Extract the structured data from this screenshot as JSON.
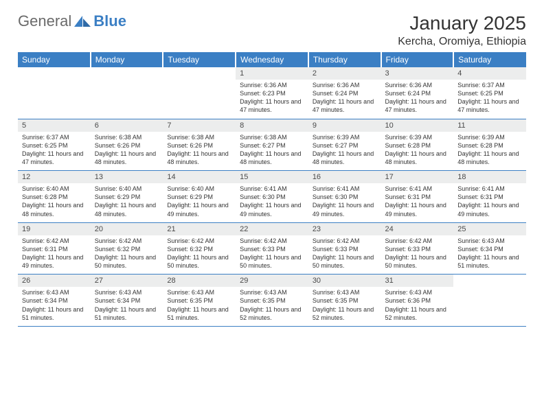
{
  "brand": {
    "part1": "General",
    "part2": "Blue",
    "logo_color": "#3b7fc4"
  },
  "title": "January 2025",
  "location": "Kercha, Oromiya, Ethiopia",
  "header_bg": "#3b7fc4",
  "header_fg": "#ffffff",
  "daynum_bg": "#eceded",
  "border_color": "#3b7fc4",
  "weekdays": [
    "Sunday",
    "Monday",
    "Tuesday",
    "Wednesday",
    "Thursday",
    "Friday",
    "Saturday"
  ],
  "weeks": [
    [
      null,
      null,
      null,
      {
        "d": "1",
        "sr": "6:36 AM",
        "ss": "6:23 PM",
        "dl": "11 hours and 47 minutes."
      },
      {
        "d": "2",
        "sr": "6:36 AM",
        "ss": "6:24 PM",
        "dl": "11 hours and 47 minutes."
      },
      {
        "d": "3",
        "sr": "6:36 AM",
        "ss": "6:24 PM",
        "dl": "11 hours and 47 minutes."
      },
      {
        "d": "4",
        "sr": "6:37 AM",
        "ss": "6:25 PM",
        "dl": "11 hours and 47 minutes."
      }
    ],
    [
      {
        "d": "5",
        "sr": "6:37 AM",
        "ss": "6:25 PM",
        "dl": "11 hours and 47 minutes."
      },
      {
        "d": "6",
        "sr": "6:38 AM",
        "ss": "6:26 PM",
        "dl": "11 hours and 48 minutes."
      },
      {
        "d": "7",
        "sr": "6:38 AM",
        "ss": "6:26 PM",
        "dl": "11 hours and 48 minutes."
      },
      {
        "d": "8",
        "sr": "6:38 AM",
        "ss": "6:27 PM",
        "dl": "11 hours and 48 minutes."
      },
      {
        "d": "9",
        "sr": "6:39 AM",
        "ss": "6:27 PM",
        "dl": "11 hours and 48 minutes."
      },
      {
        "d": "10",
        "sr": "6:39 AM",
        "ss": "6:28 PM",
        "dl": "11 hours and 48 minutes."
      },
      {
        "d": "11",
        "sr": "6:39 AM",
        "ss": "6:28 PM",
        "dl": "11 hours and 48 minutes."
      }
    ],
    [
      {
        "d": "12",
        "sr": "6:40 AM",
        "ss": "6:28 PM",
        "dl": "11 hours and 48 minutes."
      },
      {
        "d": "13",
        "sr": "6:40 AM",
        "ss": "6:29 PM",
        "dl": "11 hours and 48 minutes."
      },
      {
        "d": "14",
        "sr": "6:40 AM",
        "ss": "6:29 PM",
        "dl": "11 hours and 49 minutes."
      },
      {
        "d": "15",
        "sr": "6:41 AM",
        "ss": "6:30 PM",
        "dl": "11 hours and 49 minutes."
      },
      {
        "d": "16",
        "sr": "6:41 AM",
        "ss": "6:30 PM",
        "dl": "11 hours and 49 minutes."
      },
      {
        "d": "17",
        "sr": "6:41 AM",
        "ss": "6:31 PM",
        "dl": "11 hours and 49 minutes."
      },
      {
        "d": "18",
        "sr": "6:41 AM",
        "ss": "6:31 PM",
        "dl": "11 hours and 49 minutes."
      }
    ],
    [
      {
        "d": "19",
        "sr": "6:42 AM",
        "ss": "6:31 PM",
        "dl": "11 hours and 49 minutes."
      },
      {
        "d": "20",
        "sr": "6:42 AM",
        "ss": "6:32 PM",
        "dl": "11 hours and 50 minutes."
      },
      {
        "d": "21",
        "sr": "6:42 AM",
        "ss": "6:32 PM",
        "dl": "11 hours and 50 minutes."
      },
      {
        "d": "22",
        "sr": "6:42 AM",
        "ss": "6:33 PM",
        "dl": "11 hours and 50 minutes."
      },
      {
        "d": "23",
        "sr": "6:42 AM",
        "ss": "6:33 PM",
        "dl": "11 hours and 50 minutes."
      },
      {
        "d": "24",
        "sr": "6:42 AM",
        "ss": "6:33 PM",
        "dl": "11 hours and 50 minutes."
      },
      {
        "d": "25",
        "sr": "6:43 AM",
        "ss": "6:34 PM",
        "dl": "11 hours and 51 minutes."
      }
    ],
    [
      {
        "d": "26",
        "sr": "6:43 AM",
        "ss": "6:34 PM",
        "dl": "11 hours and 51 minutes."
      },
      {
        "d": "27",
        "sr": "6:43 AM",
        "ss": "6:34 PM",
        "dl": "11 hours and 51 minutes."
      },
      {
        "d": "28",
        "sr": "6:43 AM",
        "ss": "6:35 PM",
        "dl": "11 hours and 51 minutes."
      },
      {
        "d": "29",
        "sr": "6:43 AM",
        "ss": "6:35 PM",
        "dl": "11 hours and 52 minutes."
      },
      {
        "d": "30",
        "sr": "6:43 AM",
        "ss": "6:35 PM",
        "dl": "11 hours and 52 minutes."
      },
      {
        "d": "31",
        "sr": "6:43 AM",
        "ss": "6:36 PM",
        "dl": "11 hours and 52 minutes."
      },
      null
    ]
  ]
}
